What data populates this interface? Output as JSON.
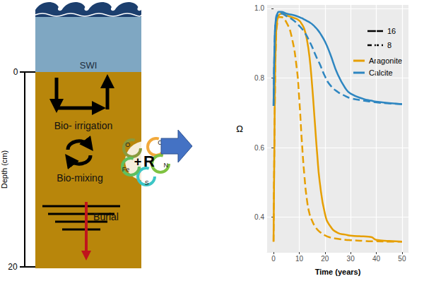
{
  "diagram": {
    "water_label": "SWI",
    "depth_axis": {
      "title": "Depth (cm)",
      "ticks": [
        0,
        20
      ]
    },
    "processes": [
      "Bio- irrigation",
      "Bio-mixing",
      "Burial"
    ],
    "reaction_sign": "+",
    "reaction_center": "R",
    "elements": [
      "O",
      "C",
      "N",
      "S",
      "Fe"
    ]
  },
  "chart_data": {
    "type": "line",
    "x_label": "Time (years)",
    "y_label": "Ω",
    "xlim": [
      -2.5,
      52.5
    ],
    "xticks": [
      0,
      10,
      20,
      30,
      40,
      50
    ],
    "ylim": [
      0.3,
      1.01
    ],
    "yticks": [
      0.4,
      0.6,
      0.8,
      {
        "value": 1,
        "label": "1.0"
      }
    ],
    "grid": true,
    "legend": "top-right",
    "line_styles": [
      {
        "name": "16",
        "line_style": "solid"
      },
      {
        "name": "8",
        "line_style": "dashed"
      }
    ],
    "x": [
      0,
      0.5,
      1,
      1.5,
      2,
      3,
      5,
      7,
      9,
      10,
      11,
      12,
      13,
      14,
      15,
      16,
      17,
      18,
      20,
      22,
      25,
      28,
      30,
      35,
      38,
      40,
      45,
      50
    ],
    "series": [
      {
        "name": "Aragonite",
        "color": "#E69F00",
        "line_style": "solid",
        "values": [
          0.33,
          0.75,
          0.93,
          0.97,
          0.98,
          0.985,
          0.98,
          0.975,
          0.97,
          0.965,
          0.955,
          0.94,
          0.91,
          0.86,
          0.78,
          0.68,
          0.58,
          0.5,
          0.41,
          0.375,
          0.355,
          0.35,
          0.347,
          0.345,
          0.343,
          0.335,
          0.332,
          0.33
        ]
      },
      {
        "name": "Aragonite",
        "color": "#E69F00",
        "line_style": "dashed",
        "values": [
          0.33,
          0.72,
          0.92,
          0.96,
          0.975,
          0.975,
          0.96,
          0.92,
          0.83,
          0.74,
          0.62,
          0.52,
          0.45,
          0.41,
          0.39,
          0.375,
          0.365,
          0.358,
          0.348,
          0.342,
          0.338,
          0.335,
          0.334,
          0.332,
          0.331,
          0.331,
          0.33,
          0.33
        ]
      },
      {
        "name": "Calcite",
        "color": "#2E86C1",
        "line_style": "solid",
        "values": [
          0.72,
          0.93,
          0.975,
          0.985,
          0.99,
          0.99,
          0.985,
          0.982,
          0.978,
          0.975,
          0.972,
          0.968,
          0.964,
          0.96,
          0.955,
          0.948,
          0.94,
          0.93,
          0.905,
          0.87,
          0.81,
          0.77,
          0.755,
          0.74,
          0.735,
          0.732,
          0.728,
          0.725
        ]
      },
      {
        "name": "Calcite",
        "color": "#2E86C1",
        "line_style": "dashed",
        "values": [
          0.72,
          0.92,
          0.97,
          0.98,
          0.985,
          0.985,
          0.978,
          0.97,
          0.958,
          0.95,
          0.942,
          0.932,
          0.92,
          0.905,
          0.89,
          0.872,
          0.855,
          0.84,
          0.805,
          0.78,
          0.76,
          0.748,
          0.742,
          0.735,
          0.732,
          0.73,
          0.727,
          0.725
        ]
      }
    ]
  }
}
